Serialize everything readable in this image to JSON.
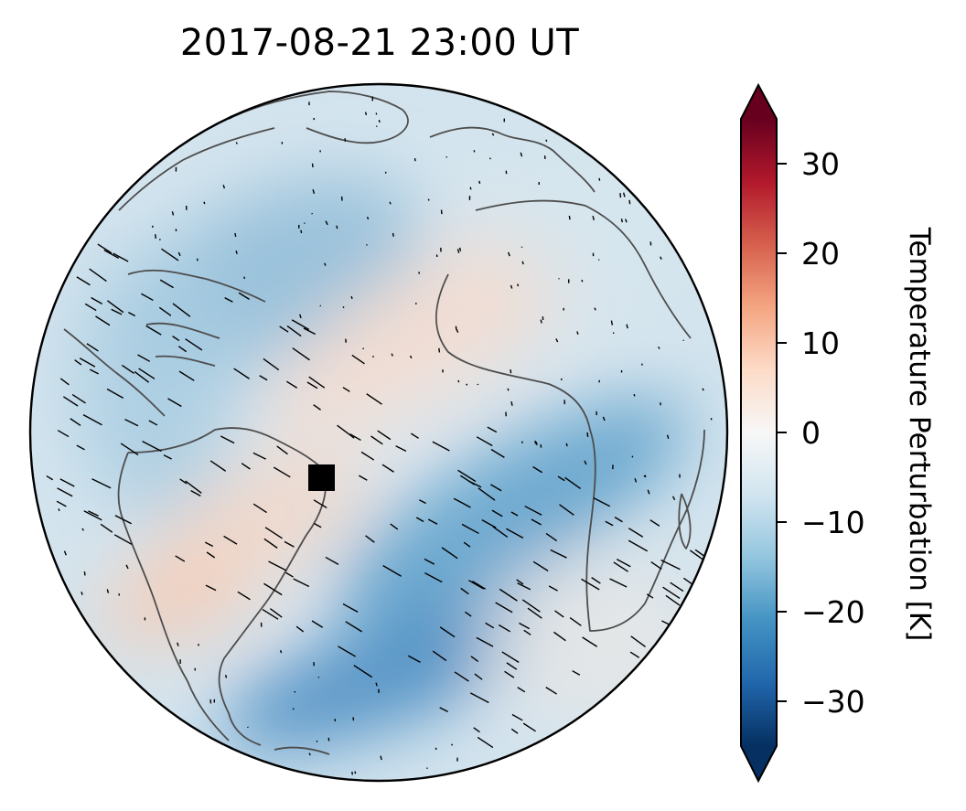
{
  "title": "2017-08-21  23:00 UT",
  "colorbar": {
    "label": "Temperature Perturbation [K]",
    "ticks": [
      30,
      20,
      10,
      0,
      -10,
      -20,
      -30
    ],
    "tick_labels": [
      "30",
      "20",
      "10",
      "0",
      "−10",
      "−20",
      "−30"
    ],
    "range": [
      -35,
      35
    ],
    "extend": "both",
    "colormap": "RdBu_r",
    "colors": [
      "#053061",
      "#2166ac",
      "#4393c3",
      "#92c5de",
      "#d1e5f0",
      "#f7f7f7",
      "#fddbc7",
      "#f4a582",
      "#d6604d",
      "#b2182b",
      "#67001f"
    ]
  },
  "map": {
    "projection": "orthographic",
    "marker": "black-square",
    "coastline_color": "#4d4d4d"
  }
}
